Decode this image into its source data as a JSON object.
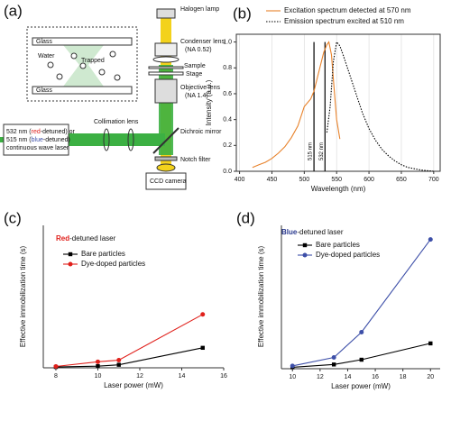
{
  "diagram": {
    "label": "(a)",
    "inset": {
      "glass_top": "Glass",
      "water": "Water",
      "trapped": "Trapped",
      "glass_bottom": "Glass"
    },
    "components": {
      "lamp": "Halogen lamp",
      "condenser": [
        "Condenser lens",
        "(NA 0.52)"
      ],
      "sample": "Sample",
      "stage": "Stage",
      "objective": [
        "Objective lens",
        "(NA 1.4)"
      ],
      "collimation": "Collimation lens",
      "dichroic": "Dichroic mirror",
      "notch": "Notch filter",
      "camera": "CCD camera"
    },
    "laser": [
      [
        "532 nm (",
        "red",
        "-detuned) or"
      ],
      [
        "515 nm (",
        "blue",
        "-detuned)"
      ],
      [
        "continuous wave laser"
      ]
    ]
  },
  "chart_data": [
    {
      "type": "line",
      "panel_label": "(b)",
      "xlabel": "Wavelength (nm)",
      "ylabel": "Intensity (a.u.)",
      "xlim": [
        395,
        710
      ],
      "xticks": [
        400,
        450,
        500,
        550,
        600,
        650,
        700
      ],
      "ylim": [
        0,
        1.06
      ],
      "yticks": [
        {
          "value": 0,
          "label": "0.0"
        },
        0.2,
        0.4,
        0.6,
        0.8,
        {
          "value": 1,
          "label": "1.0"
        }
      ],
      "grid": "x",
      "frame": "box",
      "legend": "top",
      "reference_lines": [
        {
          "x": 515,
          "label": "515 nm"
        },
        {
          "x": 532,
          "label": "532 nm"
        }
      ],
      "series": [
        {
          "name": "Excitation spectrum detected at 570 nm",
          "color": "#e8822a",
          "style": "solid",
          "x": [
            420,
            430,
            440,
            450,
            460,
            470,
            480,
            490,
            500,
            510,
            515,
            520,
            525,
            530,
            535,
            538,
            542,
            546,
            550,
            555
          ],
          "values": [
            0.03,
            0.05,
            0.07,
            0.1,
            0.14,
            0.19,
            0.26,
            0.35,
            0.5,
            0.56,
            0.62,
            0.72,
            0.82,
            0.92,
            0.98,
            1.0,
            0.9,
            0.65,
            0.4,
            0.25
          ]
        },
        {
          "name": "Emission spectrum excited at 510 nm",
          "color": "#000000",
          "style": "dotted",
          "x": [
            535,
            540,
            545,
            550,
            555,
            560,
            570,
            580,
            590,
            600,
            610,
            620,
            630,
            640,
            650,
            660,
            680,
            700
          ],
          "values": [
            0.3,
            0.5,
            0.85,
            1.0,
            0.97,
            0.9,
            0.75,
            0.6,
            0.45,
            0.33,
            0.24,
            0.17,
            0.12,
            0.08,
            0.05,
            0.03,
            0.01,
            0
          ]
        }
      ]
    },
    {
      "type": "line",
      "panel_label": "(c)",
      "title": [
        "Red",
        "-detuned laser"
      ],
      "title_color": "#e0201b",
      "xlabel": "Laser power (mW)",
      "ylabel": "Effective immobilization time (s)",
      "xlim": [
        7.4,
        16
      ],
      "xticks": [
        8,
        10,
        12,
        14,
        16
      ],
      "ylim": [
        0,
        52
      ],
      "frame": "axes",
      "legend": "top-left",
      "x": [
        8,
        10,
        11,
        15
      ],
      "series": [
        {
          "name": "Bare particles",
          "color": "#000000",
          "marker": "square",
          "values": [
            0.3,
            0.6,
            1.1,
            7.3
          ]
        },
        {
          "name": "Dye-doped particles",
          "color": "#e0201b",
          "marker": "circle",
          "values": [
            0.5,
            2.2,
            2.8,
            19.5
          ]
        }
      ]
    },
    {
      "type": "line",
      "panel_label": "(d)",
      "title": [
        "Blue",
        "-detuned laser"
      ],
      "title_color": "#2b3a8f",
      "xlabel": "Laser power (mW)",
      "ylabel": "Effective immobilization time (s)",
      "xlim": [
        9.2,
        20.7
      ],
      "xticks": [
        10,
        12,
        14,
        16,
        18,
        20
      ],
      "ylim": [
        0,
        51
      ],
      "frame": "axes",
      "legend": "top-left",
      "x": [
        10,
        13,
        15,
        20
      ],
      "series": [
        {
          "name": "Bare particles",
          "color": "#000000",
          "marker": "square",
          "values": [
            0.5,
            1.5,
            3.2,
            9
          ]
        },
        {
          "name": "Dye-doped particles",
          "color": "#3d4fa8",
          "marker": "circle",
          "values": [
            1,
            4,
            13,
            46
          ]
        }
      ]
    }
  ]
}
